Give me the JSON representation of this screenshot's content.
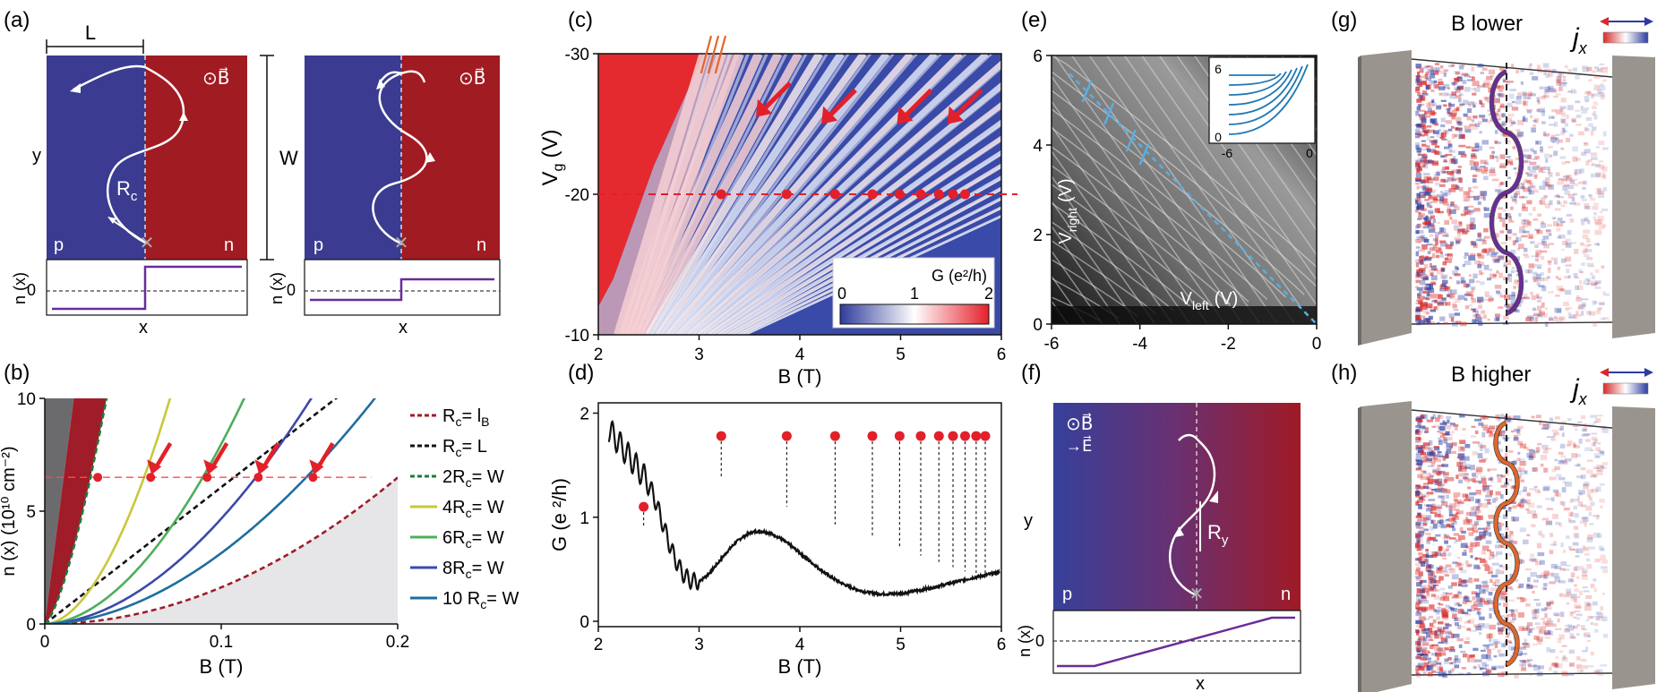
{
  "panels": {
    "a": {
      "label": "(a)",
      "dim_L": "L",
      "dim_W": "W",
      "ylabel": "y",
      "region_p": "p",
      "region_n": "n",
      "rc_label": "R",
      "rc_sub": "c",
      "b_symbol": "⊙B⃗",
      "nx_label": "n (x)",
      "x_label": "x",
      "zero_label": "0"
    },
    "b": {
      "label": "(b)",
      "xlabel": "B (T)",
      "ylabel": "n (x) (10¹⁰ cm⁻²)",
      "xticks": [
        "0",
        "0.1",
        "0.2"
      ],
      "yticks": [
        "0",
        "5",
        "10"
      ],
      "legend": [
        {
          "text": "Rⱼ= lᴮ",
          "main": "R",
          "sub": "c",
          "rest": "= l",
          "rest_sub": "B",
          "color": "#a01c2a",
          "dash": true
        },
        {
          "main": "R",
          "sub": "c",
          "rest": "= L",
          "rest_sub": "",
          "color": "#111111",
          "dash": true
        },
        {
          "main": "2R",
          "sub": "c",
          "rest": "= W",
          "rest_sub": "",
          "color": "#1e7b3c",
          "dash": true
        },
        {
          "main": "4R",
          "sub": "c",
          "rest": "= W",
          "rest_sub": "",
          "color": "#c8c83a",
          "dash": false
        },
        {
          "main": "6R",
          "sub": "c",
          "rest": "= W",
          "rest_sub": "",
          "color": "#4caf5a",
          "dash": false
        },
        {
          "main": "8R",
          "sub": "c",
          "rest": "= W",
          "rest_sub": "",
          "color": "#3b4aa8",
          "dash": false
        },
        {
          "main": "10 R",
          "sub": "c",
          "rest": "= W",
          "rest_sub": "",
          "color": "#1e6e9e",
          "dash": false
        }
      ]
    },
    "c": {
      "label": "(c)",
      "xlabel": "B (T)",
      "ylabel": "V",
      "ylabel_sub": "g",
      "ylabel_unit": "(V)",
      "xticks": [
        "2",
        "3",
        "4",
        "5",
        "6"
      ],
      "yticks": [
        "-30",
        "-20",
        "-10"
      ],
      "cbar_title": "G (e²/h)",
      "cbar_ticks": [
        "0",
        "1",
        "2"
      ]
    },
    "d": {
      "label": "(d)",
      "xlabel": "B (T)",
      "ylabel": "G (e ²/h)",
      "xticks": [
        "2",
        "3",
        "4",
        "5",
        "6"
      ],
      "yticks": [
        "0",
        "1",
        "2"
      ]
    },
    "e": {
      "label": "(e)",
      "xlabel_main": "V",
      "xlabel_sub": "left",
      "xlabel_unit": "(V)",
      "ylabel_main": "V",
      "ylabel_sub": "right",
      "ylabel_unit": "(V)",
      "xticks": [
        "-6",
        "-4",
        "-2",
        "0"
      ],
      "yticks": [
        "0",
        "2",
        "4",
        "6"
      ],
      "inset_xticks": [
        "-6",
        "0"
      ],
      "inset_yticks": [
        "0",
        "6"
      ]
    },
    "f": {
      "label": "(f)",
      "b_symbol": "⊙B⃗",
      "e_symbol": "→E⃗",
      "ylabel": "y",
      "region_p": "p",
      "region_n": "n",
      "ry_main": "R",
      "ry_sub": "y",
      "nx_label": "n (x)",
      "x_label": "x",
      "zero_label": "0"
    },
    "g": {
      "label": "(g)",
      "title": "B lower",
      "j_main": "j",
      "j_sub": "x"
    },
    "h": {
      "label": "(h)",
      "title": "B higher",
      "j_main": "j",
      "j_sub": "x"
    }
  },
  "chart_data": [
    {
      "id": "b",
      "type": "line",
      "xlabel": "B (T)",
      "ylabel": "n (x) (10¹⁰ cm⁻²)",
      "xlim": [
        0,
        0.2
      ],
      "ylim": [
        0,
        10
      ],
      "series": [
        {
          "name": "R_c= l_B",
          "color": "#a01c2a",
          "dash": true,
          "k": 0.015,
          "p": 2
        },
        {
          "name": "R_c= L",
          "color": "#111111",
          "dash": true,
          "k": 0.026,
          "p": 1
        },
        {
          "name": "2R_c= W",
          "color": "#1e7b3c",
          "dash": true,
          "k": 0.0195,
          "p": 1
        },
        {
          "name": "4R_c= W",
          "color": "#c8c83a",
          "dash": false,
          "k": 0.066,
          "p": 1.85
        },
        {
          "name": "6R_c= W",
          "color": "#4caf5a",
          "dash": false,
          "k": 0.105,
          "p": 1.85
        },
        {
          "name": "8R_c= W",
          "color": "#3b4aa8",
          "dash": false,
          "k": 0.14,
          "p": 1.85
        },
        {
          "name": "10 R_c= W",
          "color": "#1e6e9e",
          "dash": false,
          "k": 0.184,
          "p": 1.85
        }
      ],
      "reference_line_y": 6.5,
      "points": [
        [
          0.03,
          6.5
        ],
        [
          0.06,
          6.5
        ],
        [
          0.092,
          6.5
        ],
        [
          0.121,
          6.5
        ],
        [
          0.152,
          6.5
        ]
      ],
      "arrows": [
        [
          0.06,
          6.5
        ],
        [
          0.092,
          6.5
        ],
        [
          0.121,
          6.5
        ],
        [
          0.152,
          6.5
        ]
      ]
    },
    {
      "id": "c",
      "type": "heatmap",
      "xlabel": "B (T)",
      "ylabel": "V_g (V)",
      "xlim": [
        2,
        6
      ],
      "ylim": [
        -30,
        -10
      ],
      "colorbar": {
        "label": "G (e²/h)",
        "range": [
          0,
          2
        ]
      },
      "cut_line_vg": -20,
      "points_B": [
        3.22,
        3.87,
        4.35,
        4.72,
        4.99,
        5.2,
        5.38,
        5.52,
        5.64
      ]
    },
    {
      "id": "d",
      "type": "line",
      "xlabel": "B (T)",
      "ylabel": "G (e ²/h)",
      "xlim": [
        2,
        6
      ],
      "ylim": [
        0,
        2
      ],
      "peaks": [
        {
          "B": 2.45,
          "G": 1.1
        },
        {
          "B": 3.22,
          "G": 1.78
        },
        {
          "B": 3.87,
          "G": 1.78
        },
        {
          "B": 4.35,
          "G": 1.78
        },
        {
          "B": 4.72,
          "G": 1.78
        },
        {
          "B": 4.99,
          "G": 1.78
        },
        {
          "B": 5.2,
          "G": 1.78
        },
        {
          "B": 5.38,
          "G": 1.78
        },
        {
          "B": 5.52,
          "G": 1.78
        },
        {
          "B": 5.64,
          "G": 1.78
        },
        {
          "B": 5.75,
          "G": 1.78
        },
        {
          "B": 5.84,
          "G": 1.78
        }
      ],
      "peak_lines_to_G": [
        0.9,
        1.38,
        1.1,
        0.93,
        0.82,
        0.72,
        0.63,
        0.57,
        0.52,
        0.48,
        0.45,
        0.42
      ]
    },
    {
      "id": "e",
      "type": "heatmap",
      "xlabel": "V_left (V)",
      "ylabel": "V_right (V)",
      "xlim": [
        -6,
        0
      ],
      "ylim": [
        0,
        6
      ],
      "diagonal": [
        [
          -6,
          6
        ],
        [
          0,
          0
        ]
      ]
    }
  ],
  "colors": {
    "p_blue": "#3b3b91",
    "n_red": "#a11b22",
    "purple": "#6a2c98",
    "orange": "#e2662a",
    "marker_red": "#e2202a",
    "skyblue": "#5aaee0",
    "contact_gray": "#9a948f"
  }
}
